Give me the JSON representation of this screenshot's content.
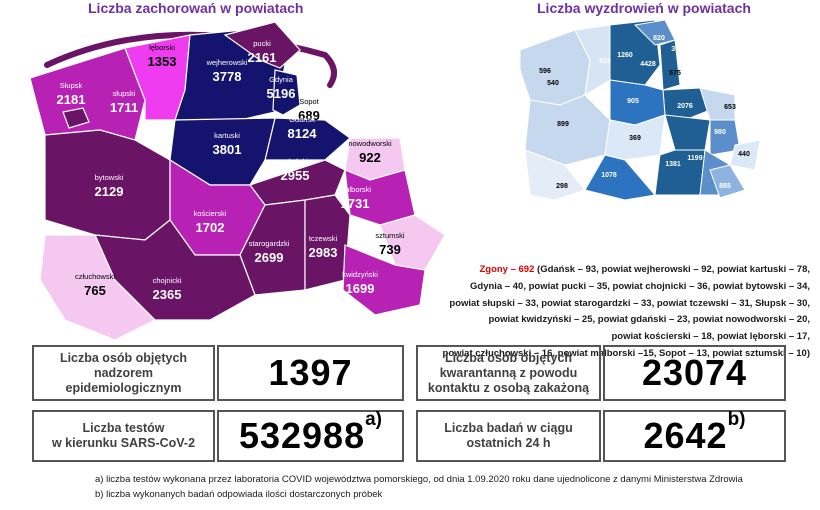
{
  "titles": {
    "left": "Liczba zachorowań w powiatach",
    "right": "Liczba wyzdrowień w powiatach"
  },
  "infections": [
    {
      "name": "pucki",
      "value": "2161"
    },
    {
      "name": "lęborski",
      "value": "1353"
    },
    {
      "name": "wejherowski",
      "value": "3778"
    },
    {
      "name": "Gdynia",
      "value": "5196"
    },
    {
      "name": "Sopot",
      "value": "689"
    },
    {
      "name": "Gdańsk",
      "value": "8124"
    },
    {
      "name": "Słupsk",
      "value": "2181"
    },
    {
      "name": "słupski",
      "value": "1711"
    },
    {
      "name": "kartuski",
      "value": "3801"
    },
    {
      "name": "nowodworski",
      "value": "922"
    },
    {
      "name": "bytowski",
      "value": "2129"
    },
    {
      "name": "gdański",
      "value": "2955"
    },
    {
      "name": "malborski",
      "value": "1731"
    },
    {
      "name": "kościerski",
      "value": "1702"
    },
    {
      "name": "sztumski",
      "value": "739"
    },
    {
      "name": "starogardzki",
      "value": "2699"
    },
    {
      "name": "tczewski",
      "value": "2983"
    },
    {
      "name": "kwidzyński",
      "value": "1699"
    },
    {
      "name": "chojnicki",
      "value": "2365"
    },
    {
      "name": "człuchowski",
      "value": "765"
    }
  ],
  "recoveries": [
    "820",
    "3016",
    "615",
    "1260",
    "4428",
    "575",
    "596",
    "540",
    "905",
    "2076",
    "653",
    "899",
    "980",
    "369",
    "1199",
    "440",
    "1381",
    "1078",
    "885",
    "298"
  ],
  "colors": {
    "dark_navy": "#14146e",
    "dark_purple": "#6a1466",
    "magenta": "#b722b5",
    "bright_magenta": "#f03cf0",
    "light_pink": "#f4c8f0",
    "title_purple": "#7030a0",
    "deaths_red": "#e00000"
  },
  "deaths": {
    "head": "Zgony – 692",
    "lines": [
      " (Gdańsk – 93, powiat wejherowski – 92, powiat kartuski – 78,",
      "Gdynia – 40, powiat pucki – 35, powiat chojnicki – 36, powiat bytowski – 34,",
      "powiat słupski – 33, powiat starogardzki – 33, powiat tczewski – 31, Słupsk – 30,",
      "powiat kwidzyński – 25, powiat gdański – 23, powiat nowodworski – 20,",
      "powiat kościerski – 18, powiat lęborski – 17,",
      "powiat człuchowski – 16, powiat malborski –15, Sopot – 13, powiat sztumski – 10)"
    ]
  },
  "stats": {
    "supervision_label": "Liczba osób objętych nadzorem epidemiologicznym",
    "supervision_value": "1397",
    "quarantine_label": "Liczba osób objętych kwarantanną z powodu kontaktu z osobą zakażoną",
    "quarantine_value": "23074",
    "tests_label_1": "Liczba testów",
    "tests_label_2": "w kierunku SARS-CoV-2",
    "tests_value": "532988",
    "tests_mark": "a)",
    "daily_label_1": "Liczba badań w ciągu",
    "daily_label_2": "ostatnich 24 h",
    "daily_value": "2642",
    "daily_mark": "b)"
  },
  "footnotes": {
    "a": "a) liczba testów wykonana przez laboratoria COVID województwa pomorskiego, od dnia 1.09.2020 roku dane ujednolicone z danymi Ministerstwa Zdrowia",
    "b": "b) liczba wykonanych badań odpowiada ilości dostarczonych próbek"
  }
}
